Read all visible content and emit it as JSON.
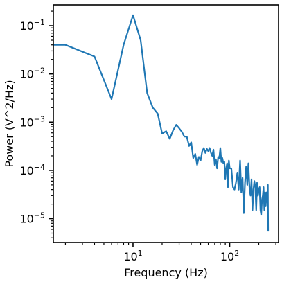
{
  "chart_data": {
    "type": "line",
    "xlabel": "Frequency (Hz)",
    "ylabel": "Power (V^2/Hz)",
    "xscale": "log",
    "yscale": "log",
    "xlim": [
      1.5,
      320
    ],
    "ylim": [
      3.2e-06,
      0.27
    ],
    "grid": false,
    "line_color": "#1f77b4",
    "x_major_ticks": [
      {
        "value": 10,
        "base": "10",
        "exp": "1"
      },
      {
        "value": 100,
        "base": "10",
        "exp": "2"
      }
    ],
    "y_major_ticks": [
      {
        "value": 0.1,
        "base": "10",
        "exp": "−1"
      },
      {
        "value": 0.01,
        "base": "10",
        "exp": "−2"
      },
      {
        "value": 0.001,
        "base": "10",
        "exp": "−3"
      },
      {
        "value": 0.0001,
        "base": "10",
        "exp": "−4"
      },
      {
        "value": 1e-05,
        "base": "10",
        "exp": "−5"
      }
    ],
    "series": [
      {
        "x": [
          1.5,
          2,
          4,
          6,
          8,
          10,
          12,
          14,
          16,
          18,
          20,
          22,
          24,
          26,
          28,
          30,
          32,
          34,
          36,
          38,
          40,
          42,
          44,
          46,
          48,
          50,
          52,
          54,
          56,
          58,
          60,
          62,
          64,
          66,
          68,
          70,
          72,
          74,
          76,
          78,
          80,
          82,
          84,
          86,
          88,
          90,
          92,
          94,
          96,
          98,
          100,
          104,
          108,
          112,
          116,
          120,
          124,
          128,
          132,
          136,
          140,
          144,
          148,
          152,
          156,
          160,
          164,
          168,
          172,
          176,
          180,
          184,
          188,
          192,
          196,
          200,
          204,
          208,
          212,
          216,
          220,
          224,
          228,
          232,
          236,
          240,
          244,
          248,
          250
        ],
        "y": [
          0.04,
          0.04,
          0.023,
          0.003,
          0.04,
          0.165,
          0.05,
          0.004,
          0.002,
          0.0015,
          0.00058,
          0.00065,
          0.00045,
          0.00068,
          0.00088,
          0.00075,
          0.00063,
          0.0005,
          0.0005,
          0.00032,
          0.00038,
          0.00018,
          0.00022,
          0.00013,
          0.00019,
          0.00016,
          0.00025,
          0.00029,
          0.00023,
          0.00028,
          0.00025,
          0.00029,
          0.00023,
          0.0002,
          0.00027,
          0.00013,
          0.00017,
          0.00011,
          0.00019,
          0.00018,
          0.00029,
          0.00015,
          0.00018,
          0.00014,
          0.00015,
          6.5e-05,
          0.00011,
          0.00014,
          4.5e-05,
          0.00016,
          0.00011,
          0.00011,
          4.5e-05,
          4e-05,
          5.5e-05,
          9e-05,
          4e-05,
          0.00016,
          3.5e-05,
          7e-05,
          1.3e-05,
          5.5e-05,
          0.00012,
          5e-05,
          0.00014,
          4.5e-05,
          3e-05,
          6.5e-05,
          1.5e-05,
          4e-05,
          6e-05,
          4.5e-05,
          1.5e-05,
          5.5e-05,
          3e-05,
          4e-05,
          4.5e-05,
          1.5e-05,
          1.2e-05,
          2.5e-05,
          3e-05,
          4.5e-05,
          1.5e-05,
          3.5e-05,
          1.8e-05,
          3.5e-05,
          2.2e-05,
          5e-05,
          5.5e-06
        ]
      }
    ]
  }
}
